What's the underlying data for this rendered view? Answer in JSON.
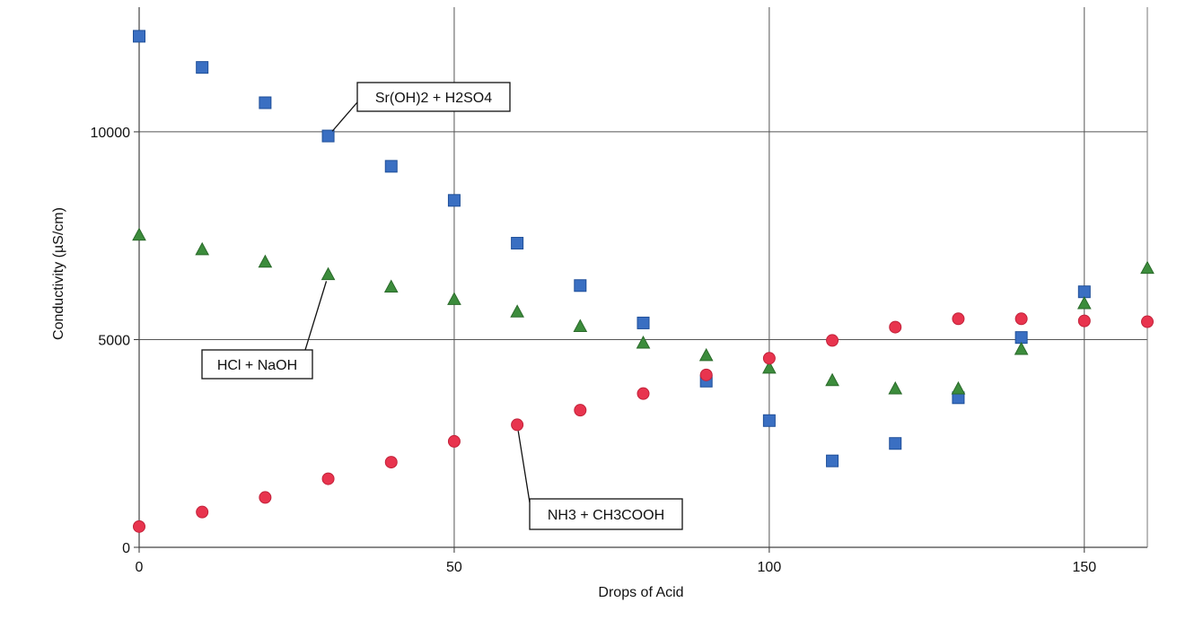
{
  "chart_data": {
    "type": "scatter",
    "title": "",
    "xlabel": "Drops of Acid",
    "ylabel": "Conductivity (µS/cm)",
    "xlim": [
      0,
      160
    ],
    "ylim": [
      0,
      13000
    ],
    "x_ticks": [
      0,
      50,
      100,
      150
    ],
    "y_ticks": [
      0,
      5000,
      10000
    ],
    "grid": true,
    "legend": "none (series identified by callout labels)",
    "series": [
      {
        "name": "Sr(OH)2 + H2SO4",
        "marker": "square",
        "color": "#3a6fc2",
        "x": [
          0,
          10,
          20,
          30,
          40,
          50,
          60,
          70,
          80,
          90,
          100,
          110,
          120,
          130,
          140,
          150
        ],
        "y": [
          12300,
          11550,
          10700,
          9900,
          9170,
          8350,
          7320,
          6300,
          5400,
          4000,
          3050,
          2080,
          2500,
          3600,
          5050,
          6150
        ]
      },
      {
        "name": "HCl + NaOH",
        "marker": "triangle",
        "color": "#3c8c3c",
        "x": [
          0,
          10,
          20,
          30,
          40,
          50,
          60,
          70,
          80,
          90,
          100,
          110,
          120,
          130,
          140,
          150,
          160
        ],
        "y": [
          7500,
          7150,
          6850,
          6550,
          6250,
          5950,
          5650,
          5300,
          4900,
          4600,
          4300,
          4000,
          3800,
          3800,
          4750,
          5850,
          6700
        ]
      },
      {
        "name": "NH3 + CH3COOH",
        "marker": "circle",
        "color": "#e8344e",
        "x": [
          0,
          10,
          20,
          30,
          40,
          50,
          60,
          70,
          80,
          90,
          100,
          110,
          120,
          130,
          140,
          150,
          160
        ],
        "y": [
          500,
          850,
          1200,
          1650,
          2050,
          2550,
          2950,
          3300,
          3700,
          4150,
          4550,
          4980,
          5300,
          5500,
          5500,
          5450,
          5430
        ]
      }
    ],
    "annotations": [
      {
        "text": "Sr(OH)2 + H2SO4",
        "target_series": 0,
        "target_index": 3
      },
      {
        "text": "HCl + NaOH",
        "target_series": 1,
        "target_index": 3
      },
      {
        "text": "NH3 + CH3COOH",
        "target_series": 2,
        "target_index": 6
      }
    ]
  }
}
